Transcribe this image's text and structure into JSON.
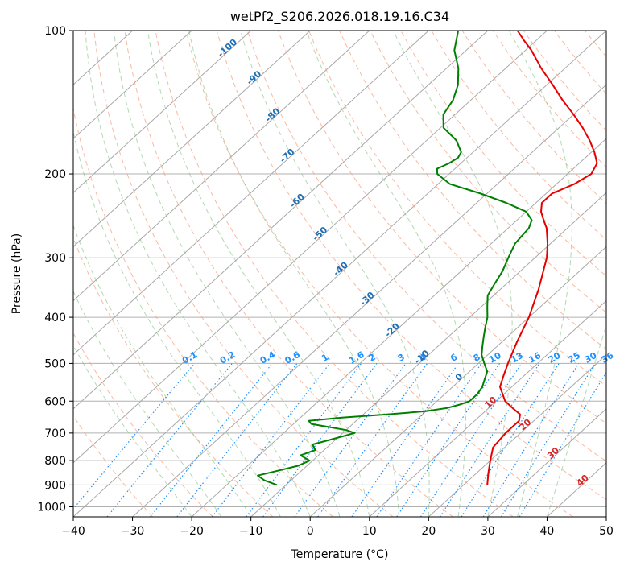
{
  "chart_data": {
    "type": "line",
    "title": "wetPf2_S206.2026.018.19.16.C34",
    "xlabel": "Temperature (°C)",
    "ylabel": "Pressure (hPa)",
    "xlim": [
      -40,
      50
    ],
    "ylim": [
      1050,
      100
    ],
    "y_scale": "log",
    "skew": true,
    "grid": true,
    "x_ticks": [
      -40,
      -30,
      -20,
      -10,
      0,
      10,
      20,
      30,
      40,
      50
    ],
    "y_ticks": [
      100,
      200,
      300,
      400,
      500,
      600,
      700,
      800,
      900,
      1000
    ],
    "series": [
      {
        "color": "#e60000",
        "pressure": [
          900,
          850,
          800,
          750,
          700,
          660,
          640,
          620,
          600,
          560,
          530,
          500,
          450,
          400,
          350,
          300,
          280,
          260,
          250,
          240,
          230,
          220,
          210,
          200,
          190,
          180,
          170,
          160,
          150,
          140,
          130,
          120,
          110,
          105,
          100
        ],
        "values": [
          24,
          22,
          20,
          18,
          17.5,
          17.5,
          16.5,
          14,
          11.5,
          8,
          6.5,
          5,
          2.5,
          0,
          -3.5,
          -8,
          -10.5,
          -13.5,
          -15.5,
          -17.5,
          -19,
          -19,
          -17,
          -16,
          -17,
          -19.5,
          -22.5,
          -26,
          -30,
          -34.5,
          -39,
          -44,
          -49,
          -52,
          -55
        ]
      },
      {
        "color": "#008000",
        "pressure": [
          900,
          880,
          860,
          840,
          820,
          800,
          780,
          760,
          740,
          720,
          700,
          690,
          680,
          670,
          660,
          650,
          640,
          630,
          620,
          610,
          600,
          580,
          560,
          540,
          520,
          500,
          480,
          460,
          440,
          420,
          400,
          380,
          360,
          340,
          320,
          300,
          280,
          260,
          250,
          240,
          230,
          220,
          210,
          200,
          195,
          190,
          185,
          180,
          170,
          160,
          150,
          140,
          130,
          120,
          110,
          100
        ],
        "values": [
          -11.5,
          -14.5,
          -16.5,
          -14,
          -11.5,
          -10.5,
          -13,
          -11.5,
          -13,
          -10.5,
          -8,
          -10,
          -13.5,
          -17,
          -18,
          -13,
          -6,
          0,
          3,
          4.5,
          5.5,
          5.5,
          5,
          4,
          3,
          1,
          -1,
          -2.5,
          -4,
          -5.5,
          -7,
          -9,
          -11,
          -12,
          -13,
          -14.5,
          -16,
          -16.5,
          -17.5,
          -20,
          -25,
          -31,
          -38,
          -42,
          -43,
          -42,
          -41.5,
          -42,
          -45,
          -49.5,
          -52,
          -53,
          -55,
          -58,
          -62,
          -65
        ]
      }
    ],
    "annotations": {
      "isotherm_labels": [
        {
          "t": -100,
          "p": 110
        },
        {
          "t": -90,
          "p": 127
        },
        {
          "t": -80,
          "p": 152
        },
        {
          "t": -70,
          "p": 185
        },
        {
          "t": -60,
          "p": 230
        },
        {
          "t": -50,
          "p": 270
        },
        {
          "t": -40,
          "p": 320
        },
        {
          "t": -30,
          "p": 370
        },
        {
          "t": -20,
          "p": 430
        },
        {
          "t": -10,
          "p": 490
        },
        {
          "t": 0,
          "p": 540
        }
      ],
      "warm_labels": [
        {
          "t": 10,
          "p": 610
        },
        {
          "t": 20,
          "p": 680
        },
        {
          "t": 30,
          "p": 780
        },
        {
          "t": 40,
          "p": 890
        }
      ],
      "mixing_ratio_labels": [
        "0.1",
        "0.2",
        "0.4",
        "0.6",
        "1",
        "1.6",
        "2",
        "3",
        "4",
        "6",
        "8",
        "10",
        "13",
        "16",
        "20",
        "25",
        "30",
        "36"
      ]
    }
  }
}
